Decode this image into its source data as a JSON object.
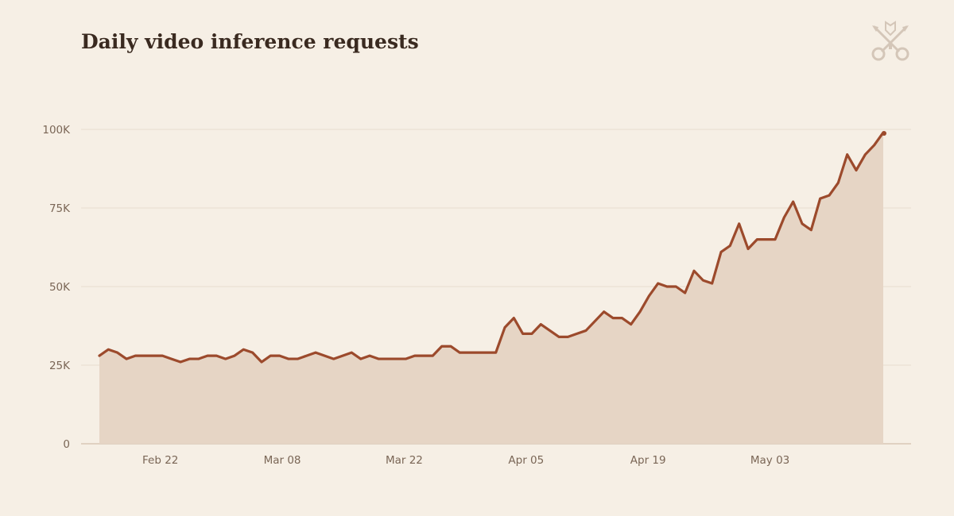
{
  "colors": {
    "background": "#f6efe5",
    "line": "#9c4a2c",
    "area": "#e6d5c5",
    "grid": "#e8ddd0",
    "axis": "#d9c7b5",
    "text": "#7a6656",
    "title": "#3a2a20",
    "logo": "#d4c6b8"
  },
  "logo": {
    "icon": "crossed-keys-icon"
  },
  "chart_data": {
    "type": "area",
    "title": "Daily video inference requests",
    "xlabel": "",
    "ylabel": "",
    "x_start": "2025-02-15",
    "x_end": "2025-05-16",
    "ylim": [
      0,
      100000
    ],
    "y_ticks": [
      {
        "value": 0,
        "label": "0"
      },
      {
        "value": 25000,
        "label": "25K"
      },
      {
        "value": 50000,
        "label": "50K"
      },
      {
        "value": 75000,
        "label": "75K"
      },
      {
        "value": 100000,
        "label": "100K"
      }
    ],
    "x_ticks": [
      {
        "date": "2025-02-22",
        "label": "Feb 22"
      },
      {
        "date": "2025-03-08",
        "label": "Mar 08"
      },
      {
        "date": "2025-03-22",
        "label": "Mar 22"
      },
      {
        "date": "2025-04-05",
        "label": "Apr 05"
      },
      {
        "date": "2025-04-19",
        "label": "Apr 19"
      },
      {
        "date": "2025-05-03",
        "label": "May 03"
      }
    ],
    "grid": true,
    "end_marker": true,
    "series": [
      {
        "name": "",
        "values": [
          28000,
          30000,
          29000,
          27000,
          28000,
          28000,
          28000,
          28000,
          27000,
          26000,
          27000,
          27000,
          28000,
          28000,
          27000,
          28000,
          30000,
          29000,
          26000,
          28000,
          28000,
          27000,
          27000,
          28000,
          29000,
          28000,
          27000,
          28000,
          29000,
          27000,
          28000,
          27000,
          27000,
          27000,
          27000,
          28000,
          28000,
          28000,
          31000,
          31000,
          29000,
          29000,
          29000,
          29000,
          29000,
          37000,
          40000,
          35000,
          35000,
          38000,
          36000,
          34000,
          34000,
          35000,
          36000,
          39000,
          42000,
          40000,
          40000,
          38000,
          42000,
          47000,
          51000,
          50000,
          50000,
          48000,
          55000,
          52000,
          51000,
          61000,
          63000,
          70000,
          62000,
          65000,
          65000,
          65000,
          72000,
          77000,
          70000,
          68000,
          78000,
          79000,
          83000,
          92000,
          87000,
          92000,
          95000,
          99000
        ]
      }
    ]
  }
}
